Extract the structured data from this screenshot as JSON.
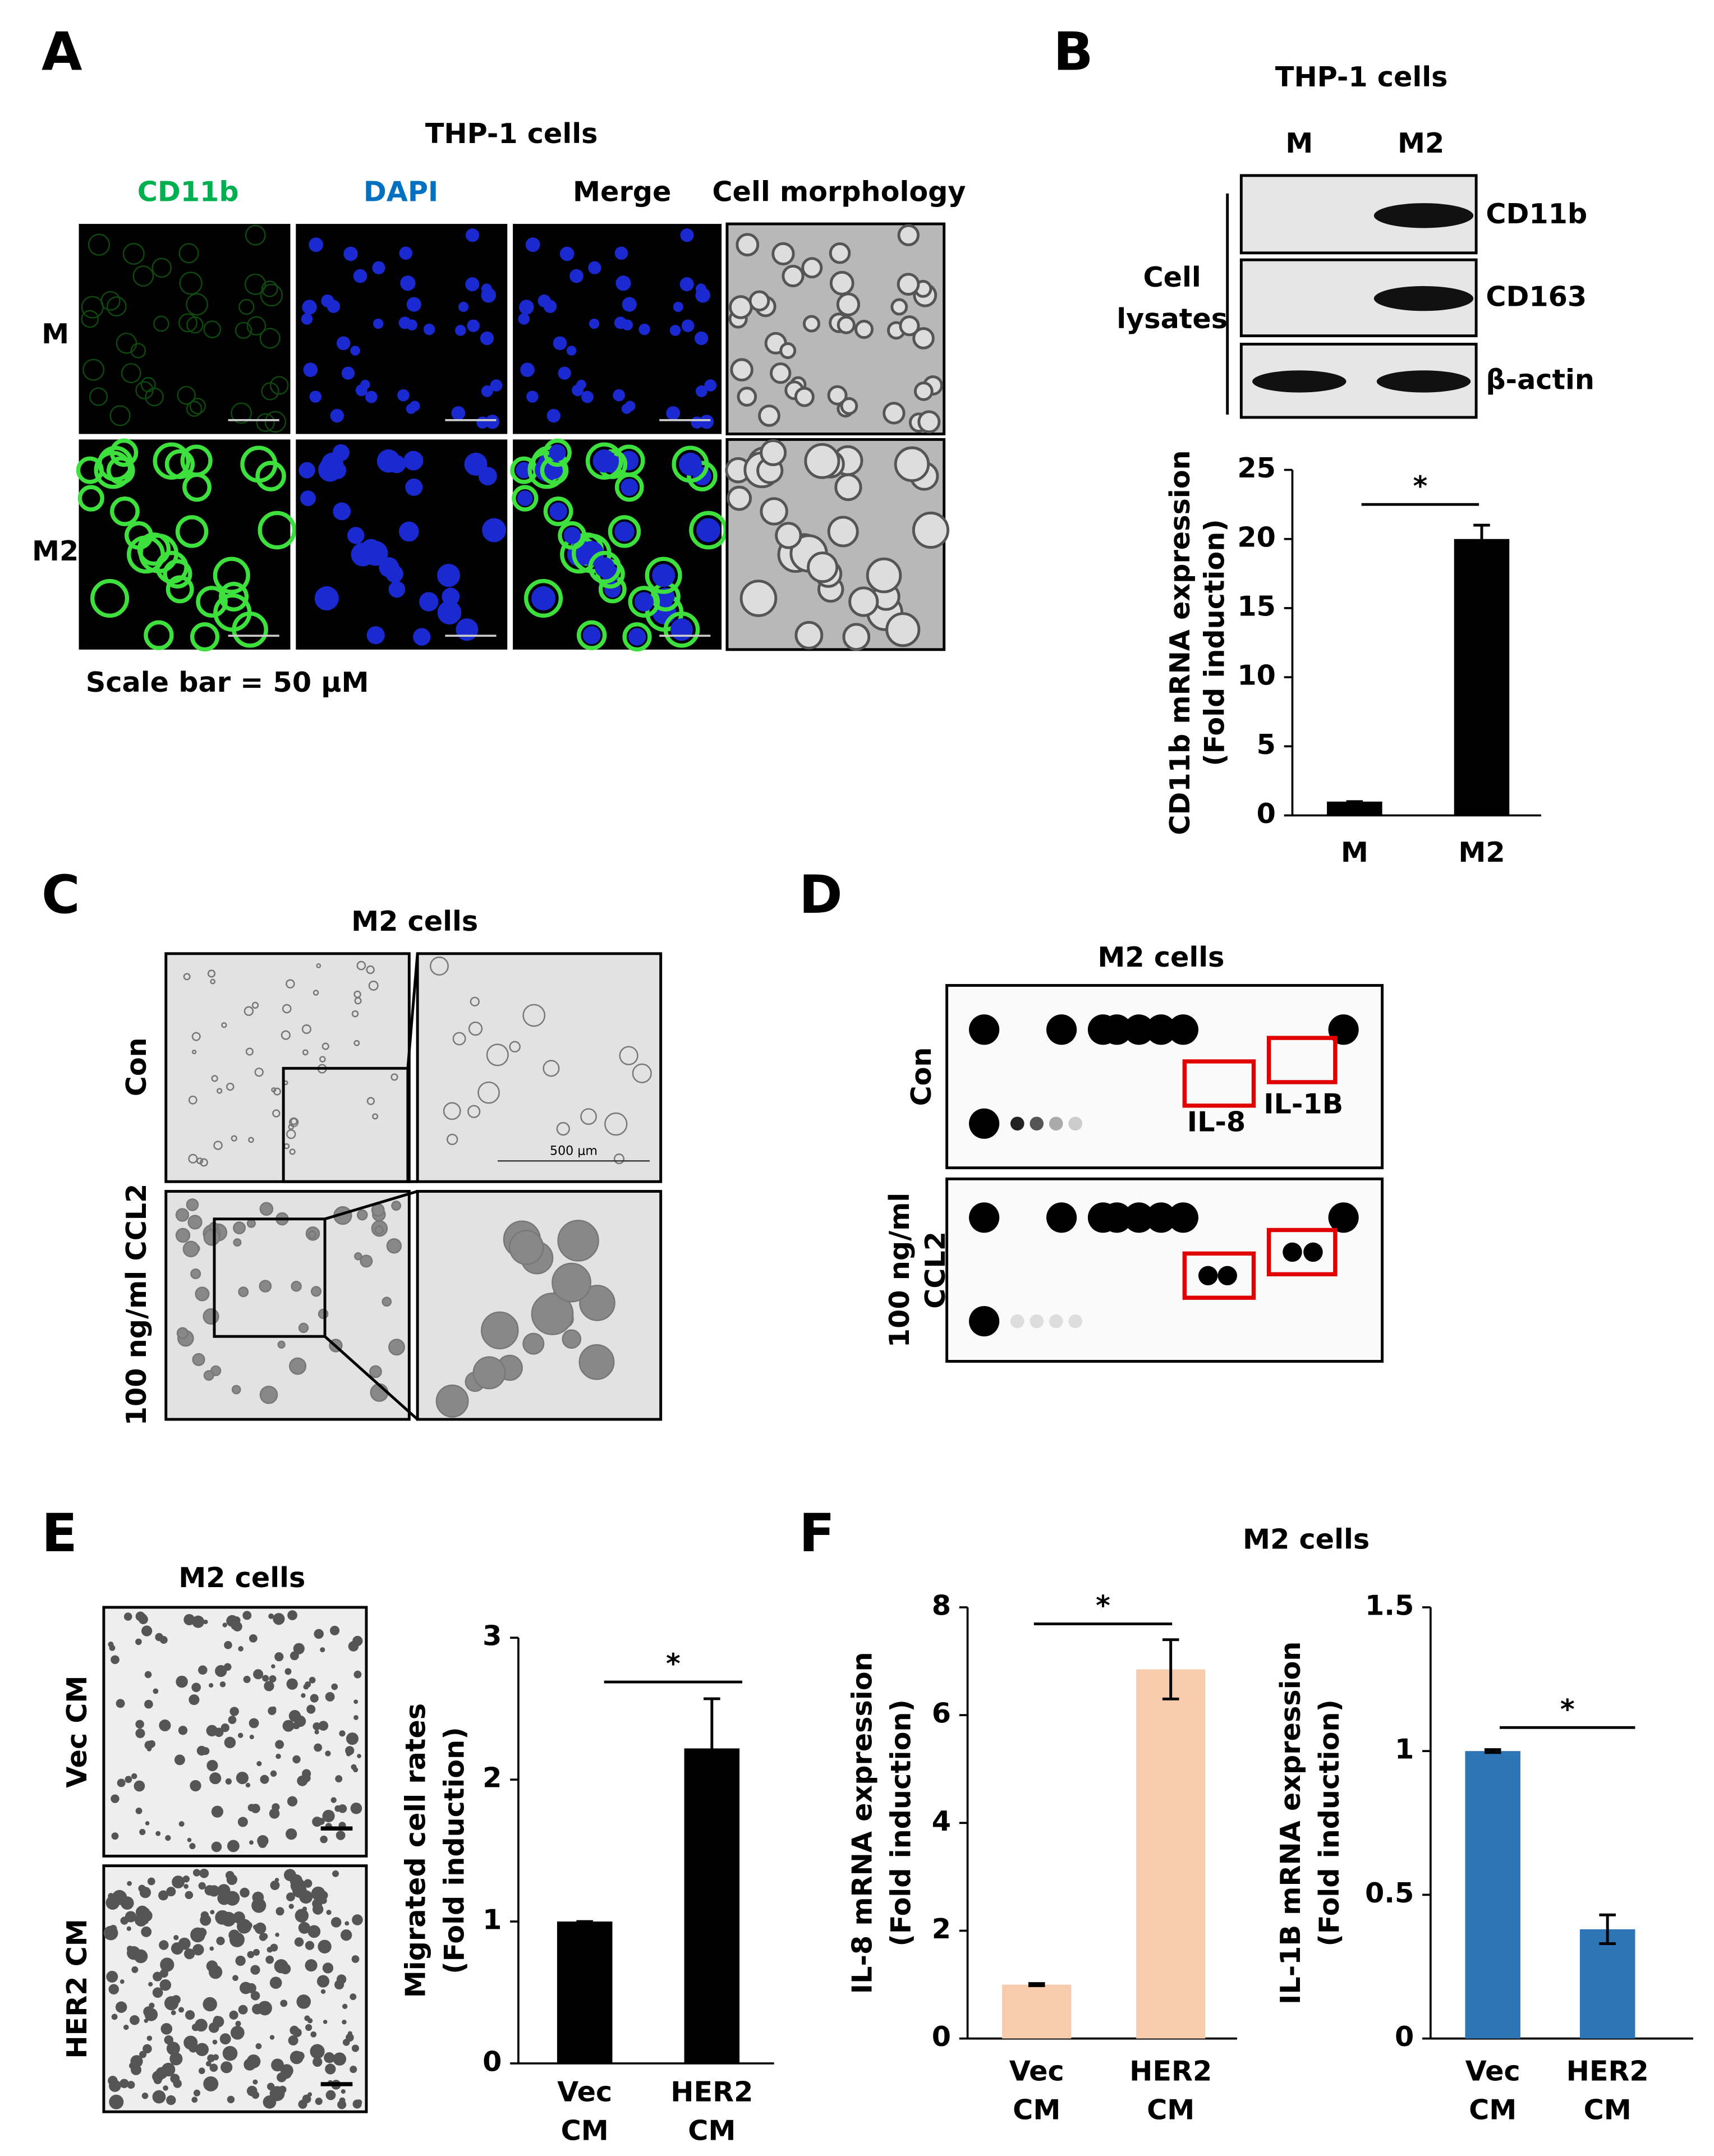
{
  "panels": {
    "A": {
      "letter": "A",
      "title": "THP-1 cells",
      "columns": [
        "CD11b",
        "DAPI",
        "Merge",
        "Cell morphology"
      ],
      "rows": [
        "M",
        "M2"
      ],
      "scale_note": "Scale bar = 50 μM"
    },
    "B": {
      "letter": "B",
      "title": "THP-1 cells",
      "lanes": [
        "M",
        "M2"
      ],
      "group": [
        "Cell",
        "lysates"
      ],
      "bands": [
        "CD11b",
        "CD163",
        "β-actin"
      ]
    },
    "C": {
      "letter": "C",
      "title": "M2 cells",
      "rows": [
        "Con",
        "100 ng/ml CCL2"
      ],
      "scale_label": "500 μm"
    },
    "D": {
      "letter": "D",
      "title": "M2 cells",
      "rows": [
        [
          "Con"
        ],
        [
          "100 ng/ml",
          "CCL2"
        ]
      ],
      "box_labels": [
        "IL-8",
        "IL-1B"
      ]
    },
    "E": {
      "letter": "E",
      "title": "M2 cells",
      "rows": [
        "Vec CM",
        "HER2 CM"
      ]
    },
    "F": {
      "letter": "F",
      "title": "M2 cells"
    }
  },
  "chart_data": [
    {
      "type": "bar",
      "ylabel": [
        "CD11b mRNA expression",
        "(Fold induction)"
      ],
      "categories": [
        [
          "M"
        ],
        [
          "M2"
        ]
      ],
      "values": [
        1,
        20
      ],
      "errors": [
        0,
        1
      ],
      "ylim": [
        0,
        25
      ],
      "yticks": [
        0,
        5,
        10,
        15,
        20,
        25
      ],
      "color": "#000000",
      "significance": "*"
    },
    {
      "type": "bar",
      "ylabel": [
        "Migrated cell rates",
        "(Fold induction)"
      ],
      "categories": [
        [
          "Vec",
          "CM"
        ],
        [
          "HER2",
          "CM"
        ]
      ],
      "values": [
        1,
        2.22
      ],
      "errors": [
        0,
        0.35
      ],
      "ylim": [
        0,
        3
      ],
      "yticks": [
        0,
        1,
        2,
        3
      ],
      "color": "#000000",
      "significance": "*"
    },
    {
      "type": "bar",
      "ylabel": [
        "IL-8 mRNA expression",
        "(Fold induction)"
      ],
      "categories": [
        [
          "Vec",
          "CM"
        ],
        [
          "HER2",
          "CM"
        ]
      ],
      "values": [
        1,
        6.85
      ],
      "errors": [
        0.02,
        0.55
      ],
      "ylim": [
        0,
        8
      ],
      "yticks": [
        0,
        2,
        4,
        6,
        8
      ],
      "color": "#f8cbad",
      "significance": "*"
    },
    {
      "type": "bar",
      "ylabel": [
        "IL-1B mRNA expression",
        "(Fold induction)"
      ],
      "categories": [
        [
          "Vec",
          "CM"
        ],
        [
          "HER2",
          "CM"
        ]
      ],
      "values": [
        1,
        0.38
      ],
      "errors": [
        0.005,
        0.05
      ],
      "ylim": [
        0,
        1.5
      ],
      "yticks": [
        0,
        0.5,
        1,
        1.5
      ],
      "color": "#2e75b6",
      "significance": "*"
    }
  ]
}
